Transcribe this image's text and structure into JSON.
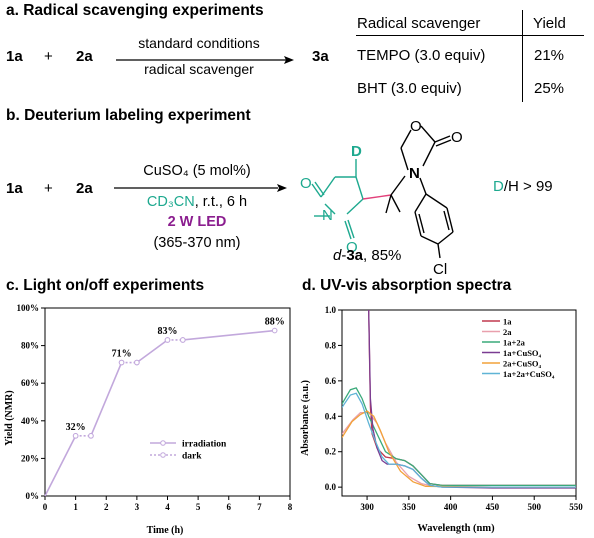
{
  "colors": {
    "teal": "#1ea98f",
    "purple": "#8b1e8f",
    "pink": "#e2407a",
    "lavender": "#c2a8dc",
    "axis": "#000000"
  },
  "section_a": {
    "title": "a. Radical scavenging experiments",
    "reactant1": "1a",
    "plus": "+",
    "reactant2": "2a",
    "cond_top": "standard conditions",
    "cond_bottom": "radical scavenger",
    "product": "3a",
    "table": {
      "headers": [
        "Radical scavenger",
        "Yield"
      ],
      "rows": [
        [
          "TEMPO (3.0 equiv)",
          "21%"
        ],
        [
          "BHT (3.0 equiv)",
          "25%"
        ]
      ]
    }
  },
  "section_b": {
    "title": "b. Deuterium labeling experiment",
    "reactant1": "1a",
    "plus": "+",
    "reactant2": "2a",
    "cond1": "CuSO₄ (5 mol%)",
    "cond2_solvent": "CD₃CN",
    "cond2_rest": ", r.t., 6 h",
    "cond3": "2 W LED",
    "cond4": "(365-370 nm)",
    "atoms": {
      "D": "D",
      "N_ring": "N",
      "N_oxaz": "N",
      "O_oxaz": "O",
      "O_carbonyl2": "O",
      "O_carbonyl1": "O",
      "O_carbonyl3": "O",
      "Cl": "Cl"
    },
    "ratio_D": "D",
    "ratio_rest": "/H > 99",
    "product_prefix": "d",
    "product_dash": "-",
    "product_name": "3a",
    "product_yield": ", 85%"
  },
  "section_c": {
    "title": "c. Light on/off experiments",
    "chart_data": {
      "type": "line",
      "xlabel": "Time (h)",
      "ylabel": "Yield (NMR)",
      "xlim": [
        0,
        8
      ],
      "ylim": [
        0,
        100
      ],
      "x_ticks": [
        "0",
        "1",
        "2",
        "3",
        "4",
        "5",
        "6",
        "7",
        "8"
      ],
      "y_ticks": [
        "0%",
        "20%",
        "40%",
        "60%",
        "80%",
        "100%"
      ],
      "series": [
        {
          "name": "irradiation",
          "style": "solid",
          "segments": [
            [
              [
                0,
                0
              ],
              [
                1,
                32
              ]
            ],
            [
              [
                1.5,
                32
              ],
              [
                2.5,
                71
              ]
            ],
            [
              [
                3,
                71
              ],
              [
                4,
                83
              ]
            ],
            [
              [
                4.5,
                83
              ],
              [
                7.5,
                88
              ]
            ]
          ]
        },
        {
          "name": "dark",
          "style": "dotted",
          "segments": [
            [
              [
                1,
                32
              ],
              [
                1.5,
                32
              ]
            ],
            [
              [
                2.5,
                71
              ],
              [
                3,
                71
              ]
            ],
            [
              [
                4,
                83
              ],
              [
                4.5,
                83
              ]
            ]
          ]
        }
      ],
      "annotations": [
        {
          "x": 1,
          "y": 32,
          "text": "32%"
        },
        {
          "x": 2.5,
          "y": 71,
          "text": "71%"
        },
        {
          "x": 4,
          "y": 83,
          "text": "83%"
        },
        {
          "x": 7.5,
          "y": 88,
          "text": "88%"
        }
      ],
      "legend_position": "center-right"
    }
  },
  "section_d": {
    "title": "d. UV-vis absorption spectra",
    "chart_data": {
      "type": "line",
      "xlabel": "Wavelength (nm)",
      "ylabel": "Absorbance (a.u.)",
      "xlim": [
        270,
        550
      ],
      "ylim": [
        -0.05,
        1.0
      ],
      "x_ticks": [
        "300",
        "350",
        "400",
        "450",
        "500",
        "550"
      ],
      "y_ticks": [
        "0.0",
        "0.2",
        "0.4",
        "0.6",
        "0.8",
        "1.0"
      ],
      "legend_position": "top-right",
      "series": [
        {
          "name": "1a",
          "color": "#c0384e",
          "points": [
            [
              302,
              1.0
            ],
            [
              304,
              0.45
            ],
            [
              306,
              0.3
            ],
            [
              312,
              0.22
            ],
            [
              322,
              0.17
            ],
            [
              335,
              0.16
            ],
            [
              345,
              0.15
            ],
            [
              355,
              0.12
            ],
            [
              365,
              0.07
            ],
            [
              375,
              0.02
            ],
            [
              390,
              0.01
            ],
            [
              450,
              0.01
            ],
            [
              550,
              0.01
            ]
          ]
        },
        {
          "name": "2a",
          "color": "#e9a0ad",
          "points": [
            [
              270,
              0.3
            ],
            [
              283,
              0.38
            ],
            [
              292,
              0.42
            ],
            [
              302,
              0.42
            ],
            [
              312,
              0.36
            ],
            [
              322,
              0.25
            ],
            [
              335,
              0.14
            ],
            [
              350,
              0.06
            ],
            [
              365,
              0.02
            ],
            [
              380,
              0.005
            ],
            [
              450,
              0.0
            ],
            [
              550,
              0.0
            ]
          ]
        },
        {
          "name": "1a+2a",
          "color": "#3aaa7a",
          "points": [
            [
              270,
              0.47
            ],
            [
              280,
              0.55
            ],
            [
              287,
              0.56
            ],
            [
              294,
              0.5
            ],
            [
              302,
              0.4
            ],
            [
              312,
              0.3
            ],
            [
              322,
              0.2
            ],
            [
              335,
              0.16
            ],
            [
              345,
              0.15
            ],
            [
              355,
              0.12
            ],
            [
              365,
              0.07
            ],
            [
              375,
              0.02
            ],
            [
              390,
              0.01
            ],
            [
              450,
              0.01
            ],
            [
              550,
              0.01
            ]
          ]
        },
        {
          "name": "1a+CuSO₄",
          "color": "#7a3c92",
          "points": [
            [
              302,
              1.0
            ],
            [
              304,
              0.5
            ],
            [
              307,
              0.33
            ],
            [
              312,
              0.22
            ],
            [
              318,
              0.15
            ],
            [
              324,
              0.13
            ],
            [
              335,
              0.13
            ],
            [
              345,
              0.12
            ],
            [
              355,
              0.1
            ],
            [
              365,
              0.05
            ],
            [
              375,
              0.01
            ],
            [
              390,
              0.0
            ],
            [
              450,
              -0.005
            ],
            [
              550,
              -0.005
            ]
          ]
        },
        {
          "name": "2a+CuSO₄",
          "color": "#f2a23a",
          "points": [
            [
              270,
              0.28
            ],
            [
              282,
              0.37
            ],
            [
              292,
              0.41
            ],
            [
              300,
              0.43
            ],
            [
              308,
              0.4
            ],
            [
              316,
              0.32
            ],
            [
              326,
              0.2
            ],
            [
              340,
              0.09
            ],
            [
              355,
              0.03
            ],
            [
              370,
              0.005
            ],
            [
              450,
              0.0
            ],
            [
              550,
              0.0
            ]
          ]
        },
        {
          "name": "1a+2a+CuSO₄",
          "color": "#5fb4d6",
          "points": [
            [
              270,
              0.45
            ],
            [
              280,
              0.52
            ],
            [
              287,
              0.53
            ],
            [
              294,
              0.47
            ],
            [
              302,
              0.36
            ],
            [
              310,
              0.26
            ],
            [
              318,
              0.17
            ],
            [
              326,
              0.13
            ],
            [
              335,
              0.13
            ],
            [
              345,
              0.12
            ],
            [
              355,
              0.1
            ],
            [
              365,
              0.05
            ],
            [
              375,
              0.01
            ],
            [
              390,
              0.0
            ],
            [
              450,
              0.0
            ],
            [
              550,
              0.0
            ]
          ]
        }
      ]
    }
  }
}
